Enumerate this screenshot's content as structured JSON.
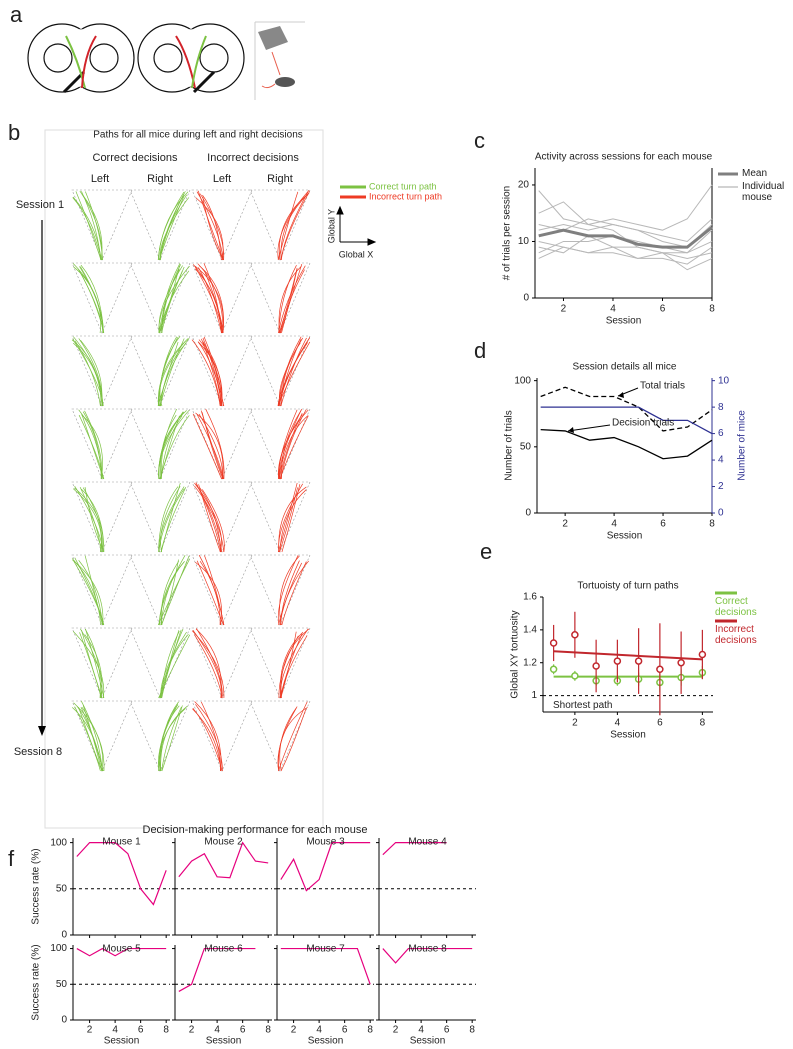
{
  "figure": {
    "panel_labels": [
      "a",
      "b",
      "c",
      "d",
      "e",
      "f"
    ]
  },
  "panel_b": {
    "title": "Paths for all mice during left and right decisions",
    "groups": [
      "Correct decisions",
      "Incorrect decisions"
    ],
    "sides": [
      "Left",
      "Right",
      "Left",
      "Right"
    ],
    "sessions": [
      "Session 1",
      "Session 8"
    ],
    "legend": [
      "Correct turn path",
      "Incorrect turn path"
    ],
    "colors": [
      "#7cc242",
      "#ee3a24"
    ],
    "axes": [
      "Global Y",
      "Global X"
    ]
  },
  "chart_data": [
    {
      "type": "line",
      "title": "Activity across sessions for each mouse",
      "xlabel": "Session",
      "ylabel": "# of trials per session",
      "x": [
        1,
        2,
        3,
        4,
        5,
        6,
        7,
        8
      ],
      "xlim": [
        0.85,
        8
      ],
      "xticks": [
        2,
        4,
        6,
        8
      ],
      "ylim": [
        0,
        23
      ],
      "yticks": [
        0,
        10,
        20
      ],
      "series": [
        {
          "name": "Mean",
          "color": "#7f7f7f",
          "values": [
            11,
            12,
            11,
            11,
            9.5,
            9,
            9,
            12.5
          ]
        },
        {
          "name": "Individual mouse",
          "color": "#b8b8b8",
          "values": [
            [
              19,
              14,
              13,
              12,
              9,
              8,
              8,
              10
            ],
            [
              15,
              17,
              13,
              14,
              13,
              12,
              14,
              20
            ],
            [
              12,
              13,
              12,
              13,
              12,
              11,
              10,
              14
            ],
            [
              8,
              10,
              10,
              11,
              10,
              9,
              8,
              12
            ],
            [
              7,
              9,
              8,
              8,
              7,
              7,
              6,
              9
            ],
            [
              10,
              9,
              8,
              9,
              9,
              8,
              7,
              8
            ],
            [
              13,
              12,
              14,
              13,
              12,
              10,
              9,
              13
            ],
            [
              9,
              8,
              11,
              9,
              7,
              8,
              5,
              7
            ]
          ]
        }
      ]
    },
    {
      "type": "line",
      "title": "Session details all mice",
      "xlabel": "Session",
      "ylabel": "Number of trials",
      "y2label": "Number of mice",
      "x": [
        1,
        2,
        3,
        4,
        5,
        6,
        7,
        8
      ],
      "xlim": [
        0.85,
        8
      ],
      "xticks": [
        2,
        4,
        6,
        8
      ],
      "ylim": [
        0,
        102
      ],
      "yticks": [
        0,
        50,
        100
      ],
      "y2lim": [
        0,
        10.2
      ],
      "y2ticks": [
        0,
        2,
        4,
        6,
        8,
        10
      ],
      "y2color": "#2e3192",
      "series": [
        {
          "name": "Total trials",
          "color": "#000000",
          "dash": true,
          "values": [
            88,
            95,
            88,
            88,
            80,
            62,
            65,
            78
          ]
        },
        {
          "name": "Decision trials",
          "color": "#000000",
          "values": [
            63,
            62,
            55,
            57,
            50,
            41,
            43,
            55
          ]
        },
        {
          "color": "#2e3192",
          "axis": "y2",
          "values": [
            8,
            8,
            8,
            8,
            8,
            7,
            7,
            6
          ]
        }
      ]
    },
    {
      "type": "errorbar",
      "title": "Tortuoisty of turn paths",
      "xlabel": "Session",
      "ylabel": "Global XY tortuosity",
      "x": [
        1,
        2,
        3,
        4,
        5,
        6,
        7,
        8
      ],
      "xlim": [
        0.5,
        8.5
      ],
      "xticks": [
        2,
        4,
        6,
        8
      ],
      "ylim": [
        0.9,
        1.6
      ],
      "yticks": [
        1,
        1.2,
        1.4,
        1.6
      ],
      "reference": {
        "value": 1,
        "label": "Shortest path"
      },
      "series": [
        {
          "name": "Correct decisions",
          "color": "#7cc242",
          "values": [
            1.16,
            1.12,
            1.09,
            1.09,
            1.1,
            1.08,
            1.11,
            1.14
          ],
          "errors": [
            0.03,
            0.03,
            0.03,
            0.03,
            0.04,
            0.06,
            0.05,
            0.04
          ],
          "fit": [
            1.115,
            1.115
          ]
        },
        {
          "name": "Incorrect decisions",
          "color": "#c1272d",
          "values": [
            1.32,
            1.37,
            1.18,
            1.21,
            1.21,
            1.16,
            1.2,
            1.25
          ],
          "errors": [
            0.11,
            0.14,
            0.16,
            0.13,
            0.2,
            0.28,
            0.19,
            0.15
          ],
          "fit": [
            1.27,
            1.22
          ]
        }
      ]
    },
    {
      "type": "small-multiples",
      "title": "Decision-making performance for each mouse",
      "xlabel": "Session",
      "ylabel": "Success rate (%)",
      "xlim": [
        0.7,
        8.3
      ],
      "xticks": [
        2,
        4,
        6,
        8
      ],
      "ylim": [
        0,
        105
      ],
      "yticks": [
        0,
        50,
        100
      ],
      "reference": 50,
      "color": "#e6007e",
      "panels": [
        {
          "title": "Mouse 1",
          "x": [
            1,
            2,
            3,
            4,
            5,
            6,
            7,
            8
          ],
          "values": [
            85,
            100,
            100,
            100,
            88,
            50,
            33,
            70
          ]
        },
        {
          "title": "Mouse 2",
          "x": [
            1,
            2,
            3,
            4,
            5,
            6,
            7,
            8
          ],
          "values": [
            63,
            80,
            88,
            63,
            62,
            100,
            80,
            78
          ]
        },
        {
          "title": "Mouse 3",
          "x": [
            1,
            2,
            3,
            4,
            5,
            6,
            7,
            8
          ],
          "values": [
            60,
            82,
            48,
            60,
            100,
            100,
            100,
            100
          ]
        },
        {
          "title": "Mouse 4",
          "x": [
            1,
            2,
            3,
            4,
            5,
            6
          ],
          "values": [
            87,
            100,
            100,
            100,
            100,
            100
          ]
        },
        {
          "title": "Mouse 5",
          "x": [
            1,
            2,
            3,
            4,
            5,
            6,
            7,
            8
          ],
          "values": [
            100,
            90,
            100,
            90,
            100,
            100,
            100,
            100
          ]
        },
        {
          "title": "Mouse 6",
          "x": [
            1,
            2,
            3,
            4,
            5,
            6,
            7
          ],
          "values": [
            40,
            50,
            100,
            100,
            100,
            100,
            100
          ]
        },
        {
          "title": "Mouse 7",
          "x": [
            1,
            2,
            3,
            4,
            5,
            6,
            7,
            8
          ],
          "values": [
            100,
            100,
            100,
            100,
            100,
            100,
            100,
            50
          ]
        },
        {
          "title": "Mouse 8",
          "x": [
            1,
            2,
            3,
            4,
            5,
            6,
            7,
            8
          ],
          "values": [
            100,
            80,
            100,
            100,
            100,
            100,
            100,
            100
          ]
        }
      ]
    }
  ]
}
